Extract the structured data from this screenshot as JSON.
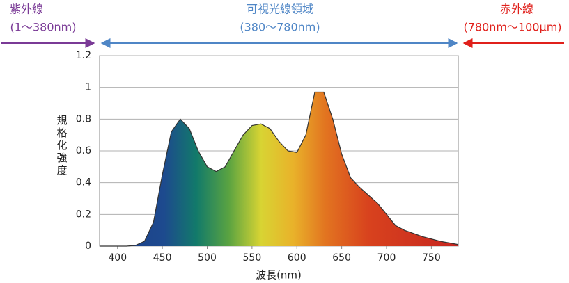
{
  "chart_data": {
    "type": "area",
    "annotations": {
      "uv": {
        "title": "紫外線",
        "range": "(1〜380nm)",
        "color": "#7a3a96"
      },
      "visible": {
        "title": "可視光線領域",
        "range": "(380〜780nm)",
        "color": "#4f86c6"
      },
      "ir": {
        "title": "赤外線",
        "range": "(780nm〜100μm)",
        "color": "#e0201b"
      }
    },
    "y_label": "規格化強度",
    "x_label": "波長(nm)",
    "x": [
      380,
      390,
      400,
      410,
      420,
      430,
      440,
      450,
      460,
      470,
      480,
      490,
      500,
      510,
      520,
      530,
      540,
      550,
      560,
      570,
      580,
      590,
      600,
      610,
      620,
      630,
      640,
      650,
      660,
      670,
      680,
      690,
      700,
      710,
      720,
      730,
      740,
      750,
      760,
      770,
      780
    ],
    "values": [
      0,
      0,
      0,
      0,
      0.005,
      0.03,
      0.15,
      0.45,
      0.72,
      0.8,
      0.74,
      0.6,
      0.5,
      0.47,
      0.5,
      0.6,
      0.7,
      0.76,
      0.77,
      0.74,
      0.66,
      0.6,
      0.59,
      0.7,
      0.97,
      0.97,
      0.8,
      0.58,
      0.43,
      0.37,
      0.32,
      0.27,
      0.2,
      0.13,
      0.1,
      0.08,
      0.06,
      0.045,
      0.03,
      0.02,
      0.01
    ],
    "xlim": [
      380,
      780
    ],
    "ylim": [
      0,
      1.2
    ],
    "xticks": [
      400,
      450,
      500,
      550,
      600,
      650,
      700,
      750
    ],
    "yticks": [
      0,
      0.2,
      0.4,
      0.6,
      0.8,
      1,
      1.2
    ],
    "grid": true
  }
}
